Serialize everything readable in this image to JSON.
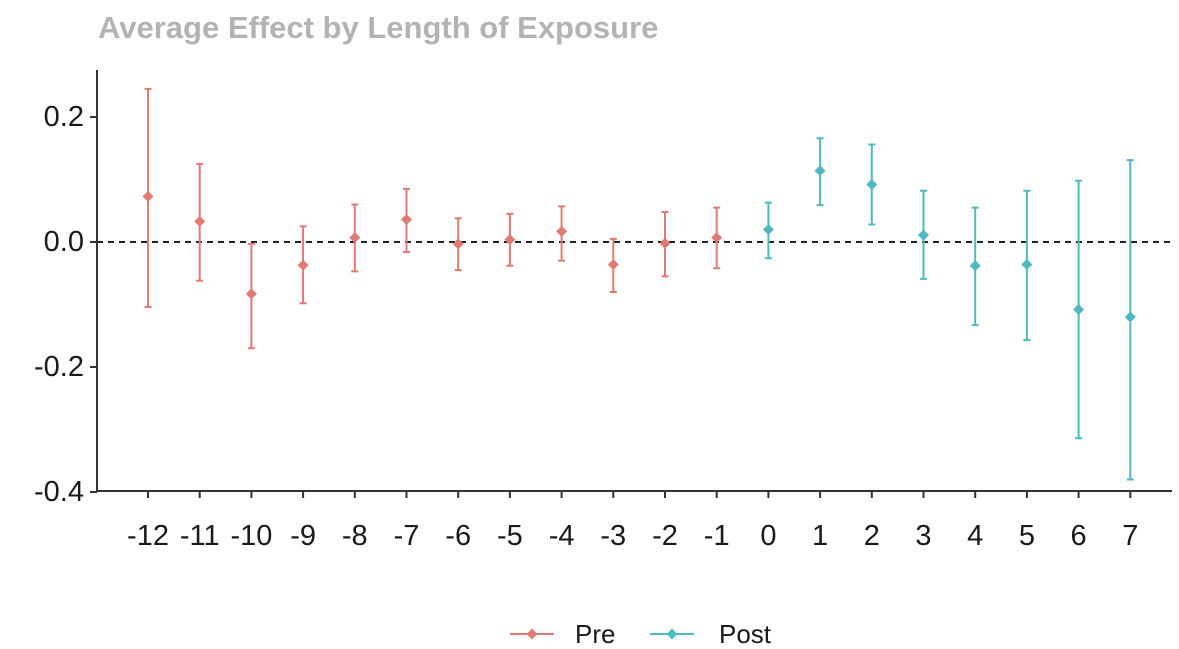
{
  "chart_data": {
    "type": "scatter",
    "title": "Average Effect by Length of Exposure",
    "xlabel": "",
    "ylabel": "",
    "categories": [
      "-12",
      "-11",
      "-10",
      "-9",
      "-8",
      "-7",
      "-6",
      "-5",
      "-4",
      "-3",
      "-2",
      "-1",
      "0",
      "1",
      "2",
      "3",
      "4",
      "5",
      "6",
      "7"
    ],
    "ylim": [
      -0.4,
      0.27
    ],
    "yticks": [
      -0.4,
      -0.2,
      0.0,
      0.2
    ],
    "ytick_labels": [
      "-0.4",
      "-0.2",
      "0.0",
      "0.2"
    ],
    "reference_line": {
      "y": 0,
      "style": "dashed"
    },
    "grid": false,
    "legend_position": "bottom",
    "series": [
      {
        "name": "Pre",
        "color": "#e07b73",
        "x": [
          -12,
          -11,
          -10,
          -9,
          -8,
          -7,
          -6,
          -5,
          -4,
          -3,
          -2,
          -1
        ],
        "estimate": [
          0.073,
          0.033,
          -0.083,
          -0.037,
          0.007,
          0.036,
          -0.003,
          0.004,
          0.017,
          -0.036,
          -0.002,
          0.007
        ],
        "ci_low": [
          -0.104,
          -0.062,
          -0.17,
          -0.098,
          -0.047,
          -0.016,
          -0.045,
          -0.038,
          -0.03,
          -0.08,
          -0.055,
          -0.042
        ],
        "ci_high": [
          0.245,
          0.125,
          -0.003,
          0.025,
          0.06,
          0.085,
          0.038,
          0.045,
          0.057,
          0.005,
          0.048,
          0.055
        ]
      },
      {
        "name": "Post",
        "color": "#4fb9c0",
        "x": [
          0,
          1,
          2,
          3,
          4,
          5,
          6,
          7
        ],
        "estimate": [
          0.02,
          0.114,
          0.092,
          0.011,
          -0.038,
          -0.036,
          -0.108,
          -0.12
        ],
        "ci_low": [
          -0.026,
          0.059,
          0.028,
          -0.059,
          -0.133,
          -0.157,
          -0.314,
          -0.38
        ],
        "ci_high": [
          0.063,
          0.166,
          0.156,
          0.082,
          0.055,
          0.082,
          0.098,
          0.131
        ]
      }
    ]
  }
}
